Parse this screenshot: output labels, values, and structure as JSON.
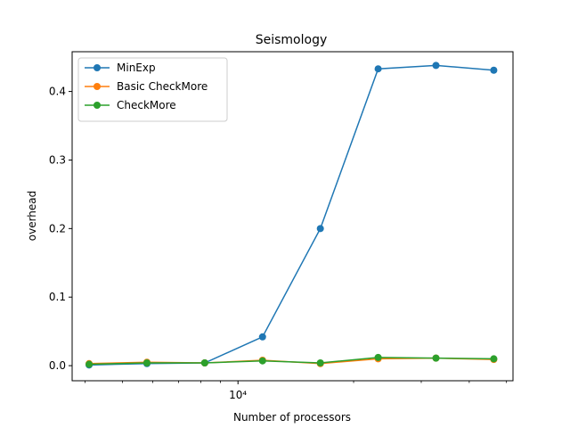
{
  "chart_data": {
    "type": "line",
    "title": "Seismology",
    "xlabel": "Number of processors",
    "ylabel": "overhead",
    "x_scale": "log",
    "x_major_tick_label": "10⁴",
    "x": [
      4096,
      5793,
      8192,
      11585,
      16384,
      23170,
      32768,
      46341
    ],
    "xlim": [
      3700,
      52000
    ],
    "ylim": [
      -0.022,
      0.458
    ],
    "y_ticks": [
      0.0,
      0.1,
      0.2,
      0.3,
      0.4
    ],
    "y_tick_labels": [
      "0.0",
      "0.1",
      "0.2",
      "0.3",
      "0.4"
    ],
    "grid": false,
    "legend_placement": "top-left",
    "series": [
      {
        "name": "MinExp",
        "color": "#1f77b4",
        "values": [
          0.001,
          0.003,
          0.004,
          0.042,
          0.2,
          0.433,
          0.438,
          0.431
        ]
      },
      {
        "name": "Basic CheckMore",
        "color": "#ff7f0e",
        "values": [
          0.003,
          0.005,
          0.004,
          0.008,
          0.003,
          0.01,
          0.011,
          0.009
        ]
      },
      {
        "name": "CheckMore",
        "color": "#2ca02c",
        "values": [
          0.002,
          0.004,
          0.004,
          0.007,
          0.004,
          0.012,
          0.011,
          0.01
        ]
      }
    ]
  }
}
